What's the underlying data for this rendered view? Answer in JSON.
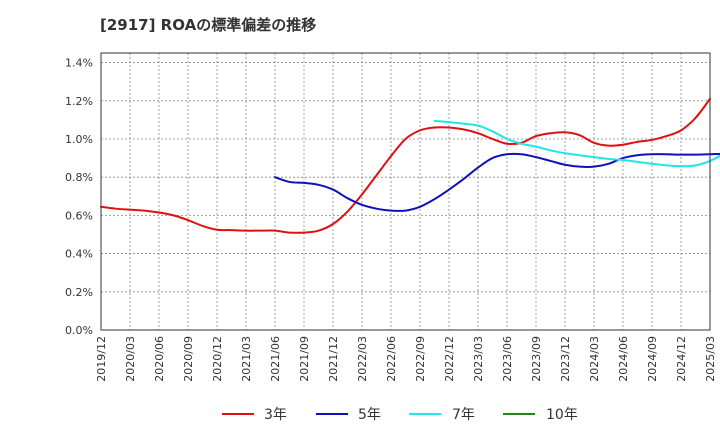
{
  "chart_data": {
    "type": "line",
    "title": "[2917]  ROAの標準偏差の推移",
    "xlabel": "",
    "ylabel": "",
    "ylim": [
      0,
      1.45
    ],
    "grid": true,
    "legend_position": "bottom",
    "y_ticks": [
      {
        "value": 0.0,
        "label": "0.0%"
      },
      {
        "value": 0.2,
        "label": "0.2%"
      },
      {
        "value": 0.4,
        "label": "0.4%"
      },
      {
        "value": 0.6,
        "label": "0.6%"
      },
      {
        "value": 0.8,
        "label": "0.8%"
      },
      {
        "value": 1.0,
        "label": "1.0%"
      },
      {
        "value": 1.2,
        "label": "1.2%"
      },
      {
        "value": 1.4,
        "label": "1.4%"
      }
    ],
    "x_ticks": [
      "2019/12",
      "2020/03",
      "2020/06",
      "2020/09",
      "2020/12",
      "2021/03",
      "2021/06",
      "2021/09",
      "2021/12",
      "2022/03",
      "2022/06",
      "2022/09",
      "2022/12",
      "2023/03",
      "2023/06",
      "2023/09",
      "2023/12",
      "2024/03",
      "2024/06",
      "2024/09",
      "2024/12",
      "2025/03"
    ],
    "series": [
      {
        "name": "3年",
        "color": "#dd1111",
        "start_index": 0,
        "values": [
          0.645,
          0.635,
          0.63,
          0.625,
          0.615,
          0.6,
          0.575,
          0.545,
          0.525,
          0.523,
          0.52,
          0.52,
          0.52,
          0.51,
          0.51,
          0.52,
          0.555,
          0.62,
          0.71,
          0.81,
          0.91,
          1.0,
          1.045,
          1.06,
          1.06,
          1.05,
          1.03,
          1.0,
          0.975,
          0.98,
          1.015,
          1.03,
          1.035,
          1.02,
          0.98,
          0.965,
          0.97,
          0.985,
          0.995,
          1.015,
          1.045,
          1.11,
          1.21
        ]
      },
      {
        "name": "5年",
        "color": "#1111bb",
        "start_index": 12,
        "values": [
          0.8,
          0.775,
          0.77,
          0.76,
          0.735,
          0.69,
          0.655,
          0.635,
          0.625,
          0.625,
          0.645,
          0.685,
          0.735,
          0.79,
          0.85,
          0.9,
          0.92,
          0.92,
          0.905,
          0.885,
          0.865,
          0.855,
          0.855,
          0.87,
          0.9,
          0.915,
          0.92,
          0.92,
          0.918,
          0.918,
          0.92,
          0.922,
          0.923,
          0.925,
          0.935,
          0.96,
          1.0,
          1.055
        ]
      },
      {
        "name": "7年",
        "color": "#22e5e5",
        "start_index": 23,
        "values": [
          1.095,
          1.088,
          1.08,
          1.07,
          1.04,
          1.0,
          0.975,
          0.96,
          0.94,
          0.925,
          0.915,
          0.905,
          0.895,
          0.89,
          0.88,
          0.87,
          0.862,
          0.858,
          0.862,
          0.885,
          0.925
        ]
      },
      {
        "name": "10年",
        "color": "#22881a",
        "start_index": 0,
        "values": []
      }
    ]
  }
}
